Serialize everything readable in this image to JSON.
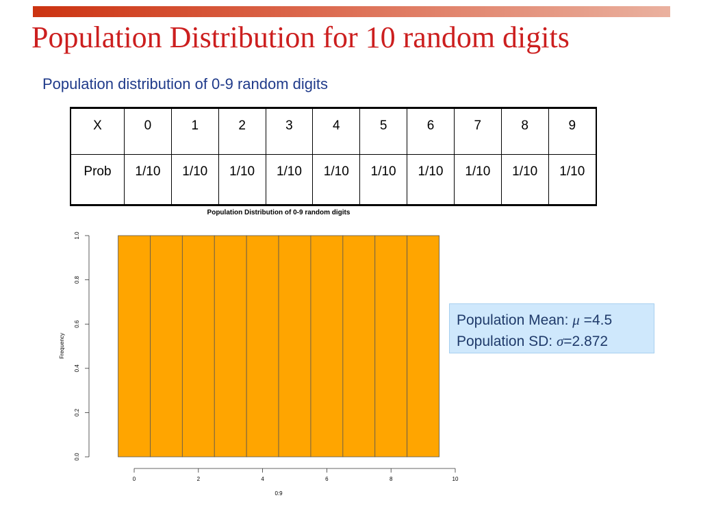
{
  "title": "Population Distribution for 10 random digits",
  "subtitle": "Population distribution of 0-9 random digits",
  "table": {
    "header_label": "X",
    "values": [
      "0",
      "1",
      "2",
      "3",
      "4",
      "5",
      "6",
      "7",
      "8",
      "9"
    ],
    "row_label": "Prob",
    "probs": [
      "1/10",
      "1/10",
      "1/10",
      "1/10",
      "1/10",
      "1/10",
      "1/10",
      "1/10",
      "1/10",
      "1/10"
    ]
  },
  "stats": {
    "mean_label": "Population Mean: ",
    "mean_symbol": "μ",
    "mean_value": " =4.5",
    "sd_label": "Population SD: ",
    "sd_symbol": "σ",
    "sd_value": "=2.872"
  },
  "colors": {
    "bar_fill": "#ffa500",
    "bar_stroke": "#555555",
    "title": "#cc1f1f",
    "subtitle": "#1f3a8a",
    "stats_bg": "#cfe8fc"
  },
  "chart_data": {
    "type": "bar",
    "title": "Population Distribution of 0-9 random digits",
    "xlabel": "0:9",
    "ylabel": "Frequency",
    "bins": [
      [
        -0.5,
        0.5
      ],
      [
        0.5,
        1.5
      ],
      [
        1.5,
        2.5
      ],
      [
        2.5,
        3.5
      ],
      [
        3.5,
        4.5
      ],
      [
        4.5,
        5.5
      ],
      [
        5.5,
        6.5
      ],
      [
        6.5,
        7.5
      ],
      [
        7.5,
        8.5
      ],
      [
        8.5,
        9.5
      ]
    ],
    "values": [
      1,
      1,
      1,
      1,
      1,
      1,
      1,
      1,
      1,
      1
    ],
    "xlim": [
      0,
      10
    ],
    "ylim": [
      0,
      1
    ],
    "x_ticks": [
      "0",
      "2",
      "4",
      "6",
      "8",
      "10"
    ],
    "y_ticks": [
      "0.0",
      "0.2",
      "0.4",
      "0.6",
      "0.8",
      "1.0"
    ],
    "grid": false,
    "legend": "none"
  }
}
